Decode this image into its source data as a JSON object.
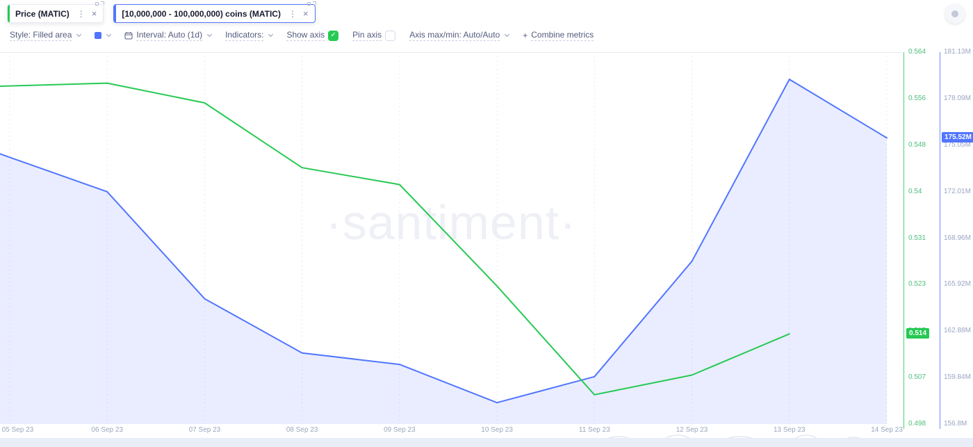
{
  "header": {
    "chips": [
      {
        "label": "Price (MATIC)",
        "color": "#26C953",
        "selected": false
      },
      {
        "label": "[10,000,000 - 100,000,000) coins (MATIC)",
        "color": "#5275FF",
        "selected": true
      }
    ],
    "icons": {
      "kebab": "⋮",
      "close": "×"
    }
  },
  "toolbar": {
    "style": "Style: Filled area",
    "color_swatch": "#5275FF",
    "interval": "Interval: Auto (1d)",
    "indicators": "Indicators:",
    "show_axis": "Show axis",
    "show_axis_checked": true,
    "pin_axis": "Pin axis",
    "pin_axis_checked": false,
    "axis_maxmin": "Axis max/min: Auto/Auto",
    "plus": "+",
    "combine_metrics": "Combine metrics"
  },
  "watermark": "·santiment·",
  "chart_data": {
    "type": "line",
    "grid_color": "#e8ebf4",
    "x": [
      "05 Sep 23",
      "06 Sep 23",
      "07 Sep 23",
      "08 Sep 23",
      "09 Sep 23",
      "10 Sep 23",
      "11 Sep 23",
      "12 Sep 23",
      "13 Sep 23",
      "14 Sep 23"
    ],
    "series": [
      {
        "name": "Price (MATIC)",
        "axis": "price",
        "color": "#26C953",
        "fill": false,
        "values": [
          0.558,
          0.5585,
          0.555,
          0.5435,
          0.5405,
          0.5225,
          0.5032,
          0.5067,
          0.514,
          null
        ]
      },
      {
        "name": "[10,000,000 - 100,000,000) coins (MATIC)",
        "axis": "supply",
        "color": "#5275FF",
        "fill": true,
        "fill_opacity": 0.13,
        "values": [
          174.25,
          172.0,
          165.0,
          161.45,
          160.7,
          158.2,
          159.9,
          167.45,
          179.35,
          175.52
        ]
      }
    ],
    "axes": {
      "price": {
        "min": 0.498,
        "max": 0.564,
        "color": "#26C953",
        "label_color": "#4dbd7c",
        "ticks": [
          "0.564",
          "0.556",
          "0.548",
          "0.54",
          "0.531",
          "0.523",
          "0.515",
          "0.507",
          "0.498"
        ],
        "badge": "0.514",
        "badge_value": 0.514
      },
      "supply": {
        "min": 156.8,
        "max": 181.13,
        "color": "#5275FF",
        "label_color": "#9aa5c2",
        "ticks": [
          "181.13M",
          "178.09M",
          "175.05M",
          "172.01M",
          "168.96M",
          "165.92M",
          "162.88M",
          "159.84M",
          "156.8M"
        ],
        "badge": "175.52M",
        "badge_value": 175.52
      }
    }
  }
}
